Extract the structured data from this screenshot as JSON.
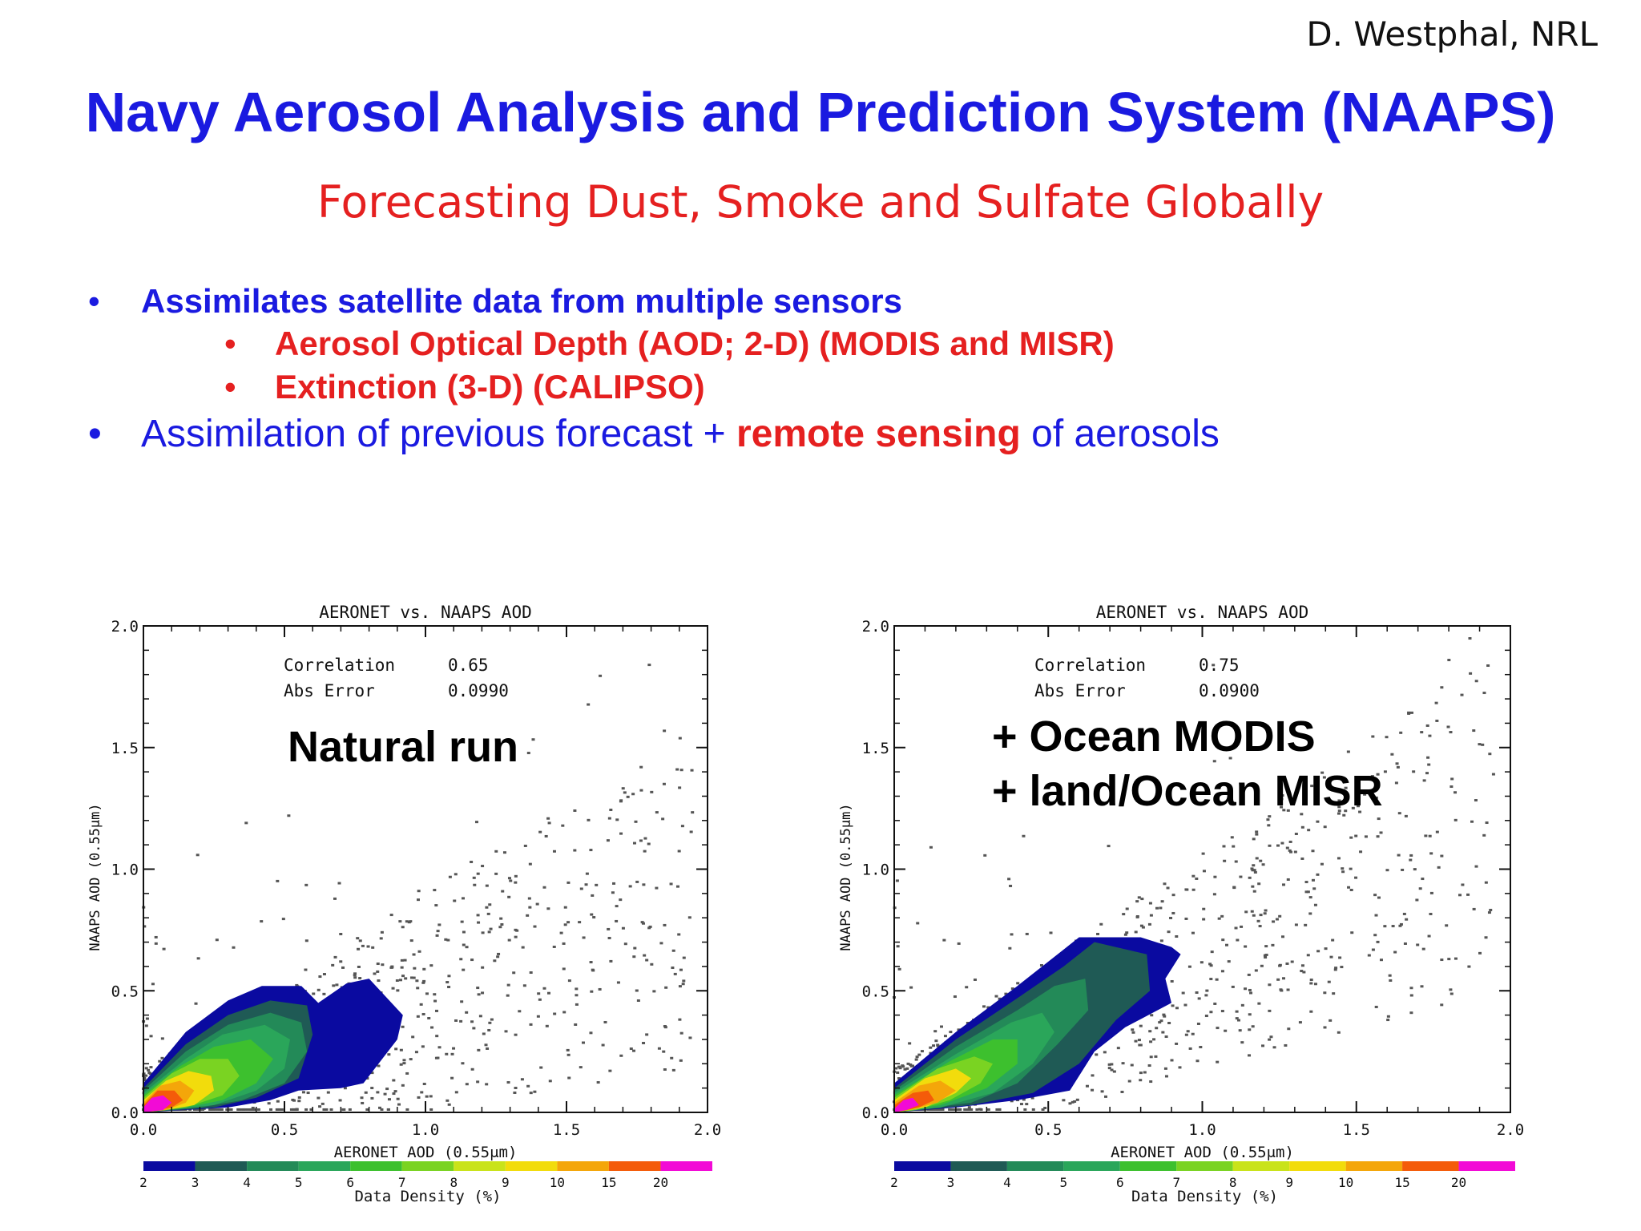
{
  "slide": {
    "author": "D. Westphal, NRL",
    "title": "Navy Aerosol Analysis and Prediction System (NAAPS)",
    "subtitle": "Forecasting Dust, Smoke and Sulfate Globally",
    "bullets": {
      "b1": "Assimilates satellite data from multiple sensors",
      "s1": "Aerosol Optical Depth (AOD; 2-D) (MODIS and MISR)",
      "s2": "Extinction (3-D) (CALIPSO)",
      "b2_part1": "Assimilation of previous forecast + ",
      "b2_part2": "remote sensing",
      "b2_part3": " of aerosols"
    },
    "bullet_char": "•"
  },
  "chart_data": [
    {
      "type": "scatter",
      "title": "AERONET vs. NAAPS AOD",
      "xlabel": "AERONET AOD  (0.55μm)",
      "ylabel": "NAAPS AOD  (0.55μm)",
      "xlim": [
        0,
        2
      ],
      "ylim": [
        0,
        2
      ],
      "x_ticks": [
        "0.0",
        "0.5",
        "1.0",
        "1.5",
        "2.0"
      ],
      "y_ticks": [
        "0.0",
        "0.5",
        "1.0",
        "1.5",
        "2.0"
      ],
      "stats_labels": [
        "Correlation",
        "Abs Error"
      ],
      "stats_values": [
        "0.65",
        "0.0990"
      ],
      "annotation_lines": [
        "Natural run"
      ],
      "density_contours": [
        {
          "level": "2",
          "points": [
            [
              0,
              0.12
            ],
            [
              0.15,
              0.33
            ],
            [
              0.3,
              0.46
            ],
            [
              0.42,
              0.52
            ],
            [
              0.56,
              0.52
            ],
            [
              0.62,
              0.45
            ],
            [
              0.72,
              0.53
            ],
            [
              0.8,
              0.55
            ],
            [
              0.92,
              0.4
            ],
            [
              0.9,
              0.3
            ],
            [
              0.78,
              0.12
            ],
            [
              0.7,
              0.1
            ],
            [
              0.55,
              0.09
            ],
            [
              0.45,
              0.05
            ],
            [
              0.3,
              0.02
            ],
            [
              0,
              0
            ]
          ]
        },
        {
          "level": "3",
          "points": [
            [
              0,
              0.1
            ],
            [
              0.15,
              0.28
            ],
            [
              0.3,
              0.4
            ],
            [
              0.45,
              0.46
            ],
            [
              0.58,
              0.44
            ],
            [
              0.6,
              0.32
            ],
            [
              0.55,
              0.14
            ],
            [
              0.4,
              0.06
            ],
            [
              0.25,
              0.02
            ],
            [
              0,
              0
            ]
          ]
        },
        {
          "level": "4",
          "points": [
            [
              0,
              0.09
            ],
            [
              0.15,
              0.25
            ],
            [
              0.3,
              0.36
            ],
            [
              0.45,
              0.41
            ],
            [
              0.56,
              0.37
            ],
            [
              0.58,
              0.25
            ],
            [
              0.5,
              0.12
            ],
            [
              0.35,
              0.05
            ],
            [
              0.2,
              0.02
            ],
            [
              0,
              0
            ]
          ]
        },
        {
          "level": "5",
          "points": [
            [
              0,
              0.08
            ],
            [
              0.15,
              0.22
            ],
            [
              0.28,
              0.32
            ],
            [
              0.43,
              0.36
            ],
            [
              0.52,
              0.3
            ],
            [
              0.5,
              0.18
            ],
            [
              0.4,
              0.09
            ],
            [
              0.25,
              0.03
            ],
            [
              0,
              0
            ]
          ]
        },
        {
          "level": "6",
          "points": [
            [
              0,
              0.07
            ],
            [
              0.13,
              0.19
            ],
            [
              0.25,
              0.27
            ],
            [
              0.38,
              0.3
            ],
            [
              0.46,
              0.22
            ],
            [
              0.4,
              0.12
            ],
            [
              0.28,
              0.05
            ],
            [
              0.15,
              0.02
            ],
            [
              0,
              0
            ]
          ]
        },
        {
          "level": "7",
          "points": [
            [
              0,
              0.06
            ],
            [
              0.1,
              0.16
            ],
            [
              0.2,
              0.22
            ],
            [
              0.3,
              0.22
            ],
            [
              0.34,
              0.15
            ],
            [
              0.28,
              0.07
            ],
            [
              0.15,
              0.02
            ],
            [
              0,
              0
            ]
          ]
        },
        {
          "level": "9",
          "points": [
            [
              0,
              0.05
            ],
            [
              0.08,
              0.13
            ],
            [
              0.16,
              0.17
            ],
            [
              0.24,
              0.15
            ],
            [
              0.25,
              0.09
            ],
            [
              0.18,
              0.03
            ],
            [
              0.08,
              0.01
            ],
            [
              0,
              0
            ]
          ]
        },
        {
          "level": "10",
          "points": [
            [
              0,
              0.04
            ],
            [
              0.06,
              0.11
            ],
            [
              0.13,
              0.13
            ],
            [
              0.18,
              0.09
            ],
            [
              0.15,
              0.04
            ],
            [
              0.08,
              0.01
            ],
            [
              0,
              0
            ]
          ]
        },
        {
          "level": "15",
          "points": [
            [
              0,
              0.03
            ],
            [
              0.05,
              0.09
            ],
            [
              0.11,
              0.09
            ],
            [
              0.14,
              0.05
            ],
            [
              0.1,
              0.02
            ],
            [
              0,
              0
            ]
          ]
        },
        {
          "level": "20",
          "points": [
            [
              0,
              0.02
            ],
            [
              0.03,
              0.06
            ],
            [
              0.07,
              0.07
            ],
            [
              0.1,
              0.04
            ],
            [
              0.07,
              0.01
            ],
            [
              0,
              0
            ]
          ]
        }
      ]
    },
    {
      "type": "scatter",
      "title": "AERONET vs. NAAPS AOD",
      "xlabel": "AERONET AOD  (0.55μm)",
      "ylabel": "NAAPS AOD  (0.55μm)",
      "xlim": [
        0,
        2
      ],
      "ylim": [
        0,
        2
      ],
      "x_ticks": [
        "0.0",
        "0.5",
        "1.0",
        "1.5",
        "2.0"
      ],
      "y_ticks": [
        "0.0",
        "0.5",
        "1.0",
        "1.5",
        "2.0"
      ],
      "stats_labels": [
        "Correlation",
        "Abs Error"
      ],
      "stats_values": [
        "0.75",
        "0.0900"
      ],
      "annotation_lines": [
        "+ Ocean MODIS",
        "+ land/Ocean MISR"
      ],
      "density_contours": [
        {
          "level": "2",
          "points": [
            [
              0,
              0.12
            ],
            [
              0.2,
              0.33
            ],
            [
              0.4,
              0.52
            ],
            [
              0.55,
              0.67
            ],
            [
              0.6,
              0.72
            ],
            [
              0.8,
              0.72
            ],
            [
              0.9,
              0.68
            ],
            [
              0.93,
              0.65
            ],
            [
              0.88,
              0.55
            ],
            [
              0.9,
              0.45
            ],
            [
              0.75,
              0.35
            ],
            [
              0.65,
              0.25
            ],
            [
              0.57,
              0.09
            ],
            [
              0.4,
              0.05
            ],
            [
              0.2,
              0.02
            ],
            [
              0,
              0
            ]
          ]
        },
        {
          "level": "3",
          "points": [
            [
              0,
              0.1
            ],
            [
              0.2,
              0.3
            ],
            [
              0.4,
              0.47
            ],
            [
              0.55,
              0.6
            ],
            [
              0.65,
              0.7
            ],
            [
              0.82,
              0.65
            ],
            [
              0.83,
              0.5
            ],
            [
              0.72,
              0.38
            ],
            [
              0.6,
              0.2
            ],
            [
              0.45,
              0.08
            ],
            [
              0.25,
              0.03
            ],
            [
              0,
              0
            ]
          ]
        },
        {
          "level": "4",
          "points": [
            [
              0,
              0.09
            ],
            [
              0.2,
              0.27
            ],
            [
              0.4,
              0.42
            ],
            [
              0.52,
              0.52
            ],
            [
              0.62,
              0.55
            ],
            [
              0.63,
              0.42
            ],
            [
              0.53,
              0.28
            ],
            [
              0.4,
              0.12
            ],
            [
              0.25,
              0.04
            ],
            [
              0,
              0
            ]
          ]
        },
        {
          "level": "5",
          "points": [
            [
              0,
              0.08
            ],
            [
              0.2,
              0.24
            ],
            [
              0.38,
              0.37
            ],
            [
              0.48,
              0.41
            ],
            [
              0.52,
              0.33
            ],
            [
              0.45,
              0.2
            ],
            [
              0.32,
              0.08
            ],
            [
              0.15,
              0.02
            ],
            [
              0,
              0
            ]
          ]
        },
        {
          "level": "6",
          "points": [
            [
              0,
              0.07
            ],
            [
              0.18,
              0.21
            ],
            [
              0.32,
              0.3
            ],
            [
              0.4,
              0.3
            ],
            [
              0.4,
              0.2
            ],
            [
              0.3,
              0.1
            ],
            [
              0.15,
              0.03
            ],
            [
              0,
              0
            ]
          ]
        },
        {
          "level": "7",
          "points": [
            [
              0,
              0.06
            ],
            [
              0.14,
              0.18
            ],
            [
              0.26,
              0.23
            ],
            [
              0.32,
              0.2
            ],
            [
              0.28,
              0.12
            ],
            [
              0.18,
              0.05
            ],
            [
              0.07,
              0.01
            ],
            [
              0,
              0
            ]
          ]
        },
        {
          "level": "9",
          "points": [
            [
              0,
              0.05
            ],
            [
              0.1,
              0.14
            ],
            [
              0.2,
              0.18
            ],
            [
              0.25,
              0.14
            ],
            [
              0.2,
              0.08
            ],
            [
              0.1,
              0.02
            ],
            [
              0,
              0
            ]
          ]
        },
        {
          "level": "10",
          "points": [
            [
              0,
              0.04
            ],
            [
              0.08,
              0.11
            ],
            [
              0.15,
              0.13
            ],
            [
              0.2,
              0.09
            ],
            [
              0.14,
              0.04
            ],
            [
              0.05,
              0.01
            ],
            [
              0,
              0
            ]
          ]
        },
        {
          "level": "15",
          "points": [
            [
              0,
              0.03
            ],
            [
              0.06,
              0.08
            ],
            [
              0.11,
              0.09
            ],
            [
              0.13,
              0.05
            ],
            [
              0.08,
              0.02
            ],
            [
              0,
              0
            ]
          ]
        },
        {
          "level": "20",
          "points": [
            [
              0,
              0.015
            ],
            [
              0.03,
              0.05
            ],
            [
              0.06,
              0.06
            ],
            [
              0.08,
              0.03
            ],
            [
              0.04,
              0.01
            ],
            [
              0,
              0
            ]
          ]
        }
      ]
    }
  ],
  "colorbar": {
    "title": "Data Density (%)",
    "labels": [
      "2",
      "3",
      "4",
      "5",
      "6",
      "7",
      "8",
      "9",
      "10",
      "15",
      "20"
    ],
    "colors": [
      "#0a0aa0",
      "#1f5a55",
      "#238a58",
      "#2aa65a",
      "#3dc02e",
      "#7ad322",
      "#c9e31a",
      "#f2dc0c",
      "#f4a60a",
      "#f45b0a",
      "#f20ad6"
    ]
  }
}
